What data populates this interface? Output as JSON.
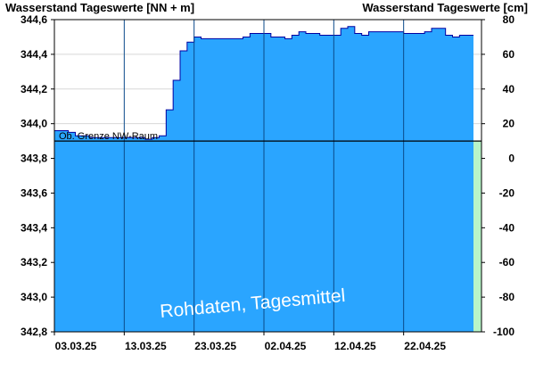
{
  "chart_data": {
    "type": "area",
    "title_left": "Wasserstand Tageswerte [NN + m]",
    "title_right": "Wasserstand Tageswerte [cm]",
    "y_left": {
      "min": 342.8,
      "max": 344.6,
      "ticks": [
        342.8,
        343.0,
        343.2,
        343.4,
        343.6,
        343.8,
        344.0,
        344.2,
        344.4,
        344.6
      ],
      "tick_labels": [
        "342,8",
        "343,0",
        "343,2",
        "343,4",
        "343,6",
        "343,8",
        "344,0",
        "344,2",
        "344,4",
        "344,6"
      ]
    },
    "y_right": {
      "min": -100,
      "max": 80,
      "ticks": [
        -100,
        -80,
        -60,
        -40,
        -20,
        0,
        20,
        40,
        60,
        80
      ],
      "tick_labels": [
        "-100",
        "-80",
        "-60",
        "-40",
        "-20",
        "0",
        "20",
        "40",
        "60",
        "80"
      ]
    },
    "x": {
      "start": "2025-03-03",
      "days": 60,
      "tick_labels": [
        "03.03.25",
        "13.03.25",
        "23.03.25",
        "02.04.25",
        "12.04.25",
        "22.04.25"
      ]
    },
    "series": [
      {
        "name": "",
        "color": "#2AA5FF",
        "values": [
          343.96,
          343.96,
          343.95,
          343.93,
          343.93,
          343.92,
          343.92,
          343.92,
          343.92,
          343.92,
          343.92,
          343.92,
          343.92,
          343.91,
          343.92,
          343.93,
          344.08,
          344.25,
          344.42,
          344.47,
          344.5,
          344.49,
          344.49,
          344.49,
          344.49,
          344.49,
          344.49,
          344.5,
          344.52,
          344.52,
          344.52,
          344.5,
          344.5,
          344.49,
          344.51,
          344.53,
          344.52,
          344.52,
          344.51,
          344.51,
          344.51,
          344.55,
          344.56,
          344.52,
          344.51,
          344.53,
          344.53,
          344.53,
          344.53,
          344.53,
          344.52,
          344.52,
          344.52,
          344.53,
          344.55,
          344.55,
          344.51,
          344.5,
          344.51,
          344.51
        ]
      }
    ],
    "reference_line": {
      "label": "Ob. Grenze NW-Raum",
      "value": 343.9
    },
    "watermark": "Rohdaten, Tagesmittel",
    "colors": {
      "area": "#2AA5FF",
      "area_stroke": "#0000A0",
      "forecast_strip": "#B8F5C8",
      "frame": "#000000",
      "grid": "#D8D8D8"
    }
  }
}
